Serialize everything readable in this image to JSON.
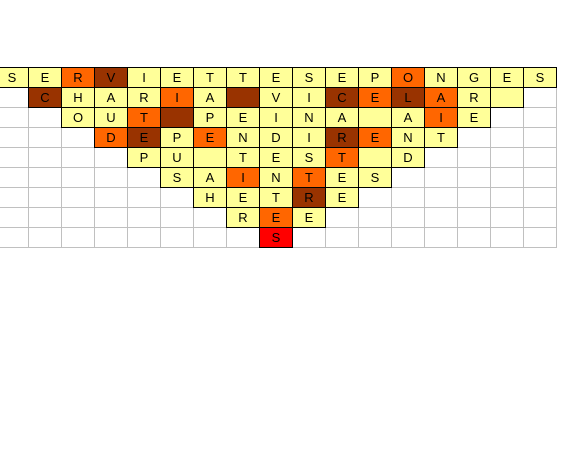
{
  "grid": {
    "rows": [
      [
        {
          "letter": "S",
          "fill": "#ffff99"
        },
        {
          "letter": "E",
          "fill": "#ffff99"
        },
        {
          "letter": "R",
          "fill": "#ff6600"
        },
        {
          "letter": "V",
          "fill": "#993300"
        },
        {
          "letter": "I",
          "fill": "#ffff99"
        },
        {
          "letter": "E",
          "fill": "#ffff99"
        },
        {
          "letter": "T",
          "fill": "#ffff99"
        },
        {
          "letter": "T",
          "fill": "#ffff99"
        },
        {
          "letter": "E",
          "fill": "#ffff99"
        },
        {
          "letter": "S",
          "fill": "#ffff99"
        },
        {
          "letter": "E",
          "fill": "#ffff99"
        },
        {
          "letter": "P",
          "fill": "#ffff99"
        },
        {
          "letter": "O",
          "fill": "#ff6600"
        },
        {
          "letter": "N",
          "fill": "#ffff99"
        },
        {
          "letter": "G",
          "fill": "#ffff99"
        },
        {
          "letter": "E",
          "fill": "#ffff99"
        },
        {
          "letter": "S",
          "fill": "#ffff99"
        }
      ],
      [
        {
          "letter": "C",
          "fill": "#993300"
        },
        {
          "letter": "H",
          "fill": "#ffff99"
        },
        {
          "letter": "A",
          "fill": "#ffff99"
        },
        {
          "letter": "R",
          "fill": "#ffff99"
        },
        {
          "letter": "I",
          "fill": "#ff6600"
        },
        {
          "letter": "A",
          "fill": "#ffff99"
        },
        {
          "letter": null,
          "fill": "#993300"
        },
        {
          "letter": "V",
          "fill": "#ffff99"
        },
        {
          "letter": "I",
          "fill": "#ffff99"
        },
        {
          "letter": "C",
          "fill": "#993300"
        },
        {
          "letter": "E",
          "fill": "#ff6600"
        },
        {
          "letter": "L",
          "fill": "#993300"
        },
        {
          "letter": "A",
          "fill": "#ff6600"
        },
        {
          "letter": "R",
          "fill": "#ffff99"
        },
        {
          "letter": null,
          "fill": "#ffff99"
        }
      ],
      [
        {
          "letter": "O",
          "fill": "#ffff99"
        },
        {
          "letter": "U",
          "fill": "#ffff99"
        },
        {
          "letter": "T",
          "fill": "#ff6600"
        },
        {
          "letter": null,
          "fill": "#993300"
        },
        {
          "letter": "P",
          "fill": "#ffff99"
        },
        {
          "letter": "E",
          "fill": "#ffff99"
        },
        {
          "letter": "I",
          "fill": "#ffff99"
        },
        {
          "letter": "N",
          "fill": "#ffff99"
        },
        {
          "letter": "A",
          "fill": "#ffff99"
        },
        {
          "letter": null,
          "fill": "#ffff99"
        },
        {
          "letter": "A",
          "fill": "#ffff99"
        },
        {
          "letter": "I",
          "fill": "#ff6600"
        },
        {
          "letter": "E",
          "fill": "#ffff99"
        }
      ],
      [
        {
          "letter": "D",
          "fill": "#ff6600"
        },
        {
          "letter": "E",
          "fill": "#993300"
        },
        {
          "letter": "P",
          "fill": "#ffff99"
        },
        {
          "letter": "E",
          "fill": "#ff6600"
        },
        {
          "letter": "N",
          "fill": "#ffff99"
        },
        {
          "letter": "D",
          "fill": "#ffff99"
        },
        {
          "letter": "I",
          "fill": "#ffff99"
        },
        {
          "letter": "R",
          "fill": "#993300"
        },
        {
          "letter": "E",
          "fill": "#ff6600"
        },
        {
          "letter": "N",
          "fill": "#ffff99"
        },
        {
          "letter": "T",
          "fill": "#ffff99"
        }
      ],
      [
        {
          "letter": "P",
          "fill": "#ffff99"
        },
        {
          "letter": "U",
          "fill": "#ffff99"
        },
        {
          "letter": null,
          "fill": "#ffff99"
        },
        {
          "letter": "T",
          "fill": "#ffff99"
        },
        {
          "letter": "E",
          "fill": "#ffff99"
        },
        {
          "letter": "S",
          "fill": "#ffff99"
        },
        {
          "letter": "T",
          "fill": "#ff6600"
        },
        {
          "letter": null,
          "fill": "#ffff99"
        },
        {
          "letter": "D",
          "fill": "#ffff99"
        }
      ],
      [
        {
          "letter": "S",
          "fill": "#ffff99"
        },
        {
          "letter": "A",
          "fill": "#ffff99"
        },
        {
          "letter": "I",
          "fill": "#ff6600"
        },
        {
          "letter": "N",
          "fill": "#ffff99"
        },
        {
          "letter": "T",
          "fill": "#ff6600"
        },
        {
          "letter": "E",
          "fill": "#ffff99"
        },
        {
          "letter": "S",
          "fill": "#ffff99"
        }
      ],
      [
        {
          "letter": "H",
          "fill": "#ffff99"
        },
        {
          "letter": "E",
          "fill": "#ffff99"
        },
        {
          "letter": "T",
          "fill": "#ffff99"
        },
        {
          "letter": "R",
          "fill": "#993300"
        },
        {
          "letter": "E",
          "fill": "#ffff99"
        }
      ],
      [
        {
          "letter": "R",
          "fill": "#ffff99"
        },
        {
          "letter": "E",
          "fill": "#ff6600"
        },
        {
          "letter": "E",
          "fill": "#ffff99"
        }
      ],
      [
        {
          "letter": "S",
          "fill": "#ff0000"
        }
      ]
    ]
  }
}
